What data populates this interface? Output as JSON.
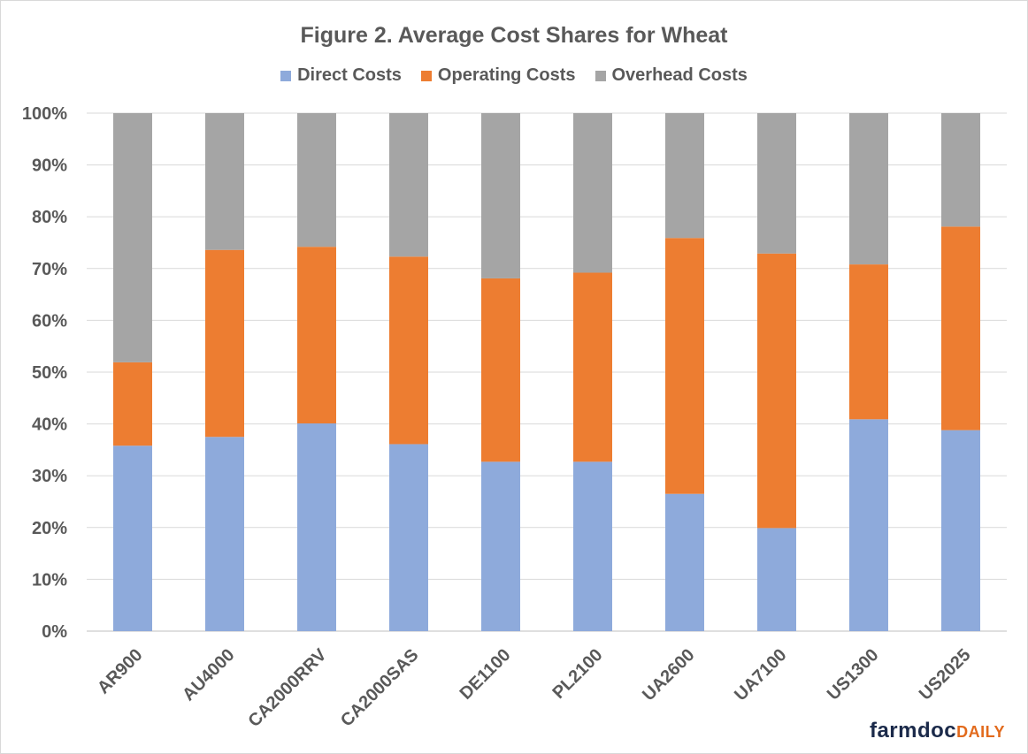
{
  "chart_data": {
    "type": "bar",
    "stacked": true,
    "title": "Figure 2. Average Cost Shares for Wheat",
    "categories": [
      "AR900",
      "AU4000",
      "CA2000RRV",
      "CA2000SAS",
      "DE1100",
      "PL2100",
      "UA2600",
      "UA7100",
      "US1300",
      "US2025"
    ],
    "series": [
      {
        "name": "Direct Costs",
        "color": "#8eaadb",
        "values": [
          35.8,
          37.5,
          40.1,
          36.1,
          32.7,
          32.7,
          26.5,
          19.9,
          40.9,
          38.8
        ]
      },
      {
        "name": "Operating Costs",
        "color": "#ed7d31",
        "values": [
          16.1,
          36.1,
          34.1,
          36.2,
          35.4,
          36.5,
          49.4,
          53.0,
          29.9,
          39.3
        ]
      },
      {
        "name": "Overhead Costs",
        "color": "#a5a5a5",
        "values": [
          48.1,
          26.4,
          25.8,
          27.7,
          31.9,
          30.8,
          24.1,
          27.1,
          29.2,
          21.9
        ]
      }
    ],
    "ylim": [
      0,
      100
    ],
    "yticks": [
      "0%",
      "10%",
      "20%",
      "30%",
      "40%",
      "50%",
      "60%",
      "70%",
      "80%",
      "90%",
      "100%"
    ],
    "legend_position": "top",
    "grid": true
  },
  "logo": {
    "text_main": "farmdoc",
    "text_accent": "DAILY"
  }
}
